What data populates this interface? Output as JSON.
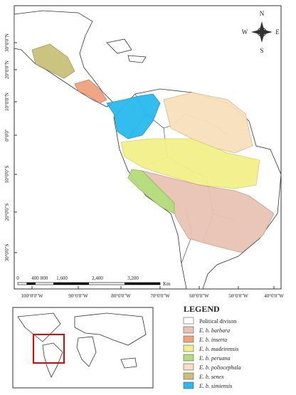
{
  "map": {
    "compass": {
      "north": "N",
      "east": "E",
      "south": "S",
      "west": "W"
    },
    "latitude_labels": [
      "30°0'0\"N",
      "20°0'0\"N",
      "10°0'0\"N",
      "0°0'0\"",
      "10°0'0\"S",
      "20°0'0\"S",
      "30°0'0\"S"
    ],
    "longitude_labels": [
      "100°0'0\"W",
      "90°0'0\"W",
      "80°0'0\"W",
      "70°0'0\"W",
      "60°0'0\"W",
      "50°0'0\"W",
      "40°0'0\"W"
    ],
    "scale_bar": {
      "labels": [
        "0",
        "400",
        "800",
        "1,600",
        "2,400",
        "3,200"
      ],
      "unit": "Km"
    }
  },
  "legend": {
    "title": "LEGEND",
    "items": [
      "Political divison",
      "E. b. barbara",
      "E. b. inserta",
      "E. b. madeirensis",
      "E. b. peruana",
      "E. b. poliocephala",
      "E. b. senex",
      "E. b. simiensis"
    ]
  }
}
